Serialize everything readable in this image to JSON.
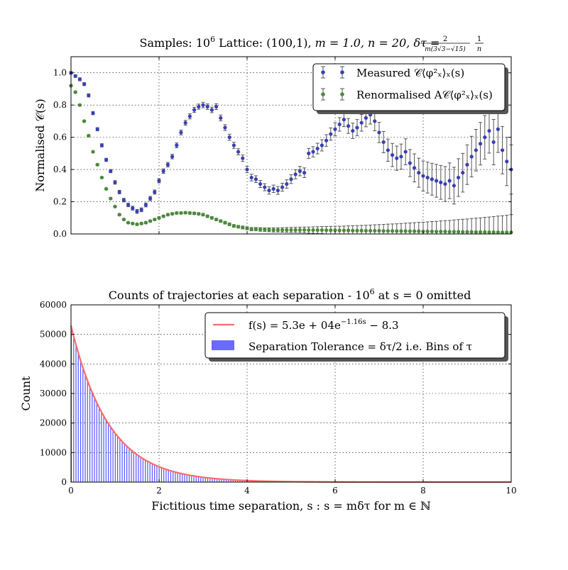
{
  "chart_data": [
    {
      "type": "scatter",
      "title": "Samples: 10^6 Lattice: (100,1), m = 1.0, n = 20, δτ = 2/(m(3√3−√15)) · 1/n",
      "title_parts": {
        "prefix": "Samples: 10",
        "exp": "6",
        "lattice": " Lattice: (100,1), ",
        "m_eq": "m = 1.0, ",
        "n_eq": "n = 20, ",
        "dtau": "δτ = ",
        "frac_num": "2",
        "frac_den": "m(3√3−√15)",
        "frac2_num": "1",
        "frac2_den": "n"
      },
      "xlabel": "",
      "ylabel": "Normalised 𝒞(s)",
      "xlim": [
        0,
        10
      ],
      "ylim": [
        0,
        1.1
      ],
      "xticks": [
        0,
        2,
        4,
        6,
        8,
        10
      ],
      "yticks": [
        0.0,
        0.2,
        0.4,
        0.6,
        0.8,
        1.0
      ],
      "ytick_labels": [
        "0.0",
        "0.2",
        "0.4",
        "0.6",
        "0.8",
        "1.0"
      ],
      "grid": true,
      "legend_position": "top-right",
      "series": [
        {
          "name": "Measured 𝒞⟨φ²ₓ⟩ₓ(s)",
          "color": "#3a3fb4",
          "x": [
            0.0,
            0.1,
            0.2,
            0.3,
            0.4,
            0.5,
            0.6,
            0.7,
            0.8,
            0.9,
            1.0,
            1.1,
            1.2,
            1.3,
            1.4,
            1.5,
            1.6,
            1.7,
            1.8,
            1.9,
            2.0,
            2.1,
            2.2,
            2.3,
            2.4,
            2.5,
            2.6,
            2.7,
            2.8,
            2.9,
            3.0,
            3.1,
            3.2,
            3.3,
            3.4,
            3.5,
            3.6,
            3.7,
            3.8,
            3.9,
            4.0,
            4.1,
            4.2,
            4.3,
            4.4,
            4.5,
            4.6,
            4.7,
            4.8,
            4.9,
            5.0,
            5.1,
            5.2,
            5.3,
            5.4,
            5.5,
            5.6,
            5.7,
            5.8,
            5.9,
            6.0,
            6.1,
            6.2,
            6.3,
            6.4,
            6.5,
            6.6,
            6.7,
            6.8,
            6.9,
            7.0,
            7.1,
            7.2,
            7.3,
            7.4,
            7.5,
            7.6,
            7.7,
            7.8,
            7.9,
            8.0,
            8.1,
            8.2,
            8.3,
            8.4,
            8.5,
            8.6,
            8.7,
            8.8,
            8.9,
            9.0,
            9.1,
            9.2,
            9.3,
            9.4,
            9.5,
            9.6,
            9.7,
            9.8,
            9.9,
            10.0
          ],
          "y": [
            1.0,
            0.98,
            0.96,
            0.93,
            0.86,
            0.75,
            0.65,
            0.55,
            0.46,
            0.39,
            0.32,
            0.26,
            0.21,
            0.18,
            0.16,
            0.14,
            0.15,
            0.18,
            0.22,
            0.26,
            0.33,
            0.39,
            0.43,
            0.48,
            0.55,
            0.63,
            0.69,
            0.73,
            0.77,
            0.79,
            0.8,
            0.79,
            0.77,
            0.79,
            0.72,
            0.66,
            0.6,
            0.55,
            0.51,
            0.47,
            0.4,
            0.35,
            0.34,
            0.31,
            0.29,
            0.27,
            0.28,
            0.27,
            0.29,
            0.31,
            0.34,
            0.37,
            0.39,
            0.38,
            0.5,
            0.51,
            0.53,
            0.55,
            0.58,
            0.62,
            0.65,
            0.68,
            0.71,
            0.67,
            0.64,
            0.66,
            0.69,
            0.72,
            0.74,
            0.7,
            0.63,
            0.57,
            0.52,
            0.49,
            0.47,
            0.48,
            0.51,
            0.44,
            0.41,
            0.38,
            0.36,
            0.35,
            0.34,
            0.33,
            0.32,
            0.31,
            0.33,
            0.3,
            0.35,
            0.38,
            0.43,
            0.48,
            0.52,
            0.56,
            0.6,
            0.64,
            0.57,
            0.65,
            0.52,
            0.45,
            0.4
          ],
          "yerr": [
            0.008,
            0.008,
            0.009,
            0.009,
            0.01,
            0.01,
            0.01,
            0.01,
            0.01,
            0.01,
            0.011,
            0.011,
            0.011,
            0.011,
            0.012,
            0.012,
            0.012,
            0.012,
            0.013,
            0.013,
            0.013,
            0.014,
            0.014,
            0.014,
            0.015,
            0.015,
            0.015,
            0.016,
            0.016,
            0.016,
            0.017,
            0.017,
            0.017,
            0.018,
            0.018,
            0.018,
            0.019,
            0.019,
            0.019,
            0.02,
            0.02,
            0.021,
            0.021,
            0.022,
            0.022,
            0.023,
            0.023,
            0.024,
            0.025,
            0.026,
            0.027,
            0.028,
            0.029,
            0.03,
            0.031,
            0.032,
            0.033,
            0.035,
            0.036,
            0.038,
            0.04,
            0.042,
            0.044,
            0.046,
            0.048,
            0.05,
            0.052,
            0.055,
            0.058,
            0.06,
            0.063,
            0.066,
            0.069,
            0.072,
            0.075,
            0.078,
            0.081,
            0.084,
            0.087,
            0.09,
            0.093,
            0.096,
            0.099,
            0.102,
            0.105,
            0.108,
            0.111,
            0.114,
            0.117,
            0.12,
            0.123,
            0.126,
            0.129,
            0.132,
            0.135,
            0.138,
            0.141,
            0.144,
            0.147,
            0.15,
            0.153
          ]
        },
        {
          "name": "Renormalised A𝒞⟨φ²ₓ⟩ₓ(s)",
          "color": "#4a8a3a",
          "x": [
            0.0,
            0.1,
            0.2,
            0.3,
            0.4,
            0.5,
            0.6,
            0.7,
            0.8,
            0.9,
            1.0,
            1.1,
            1.2,
            1.3,
            1.4,
            1.5,
            1.6,
            1.7,
            1.8,
            1.9,
            2.0,
            2.1,
            2.2,
            2.3,
            2.4,
            2.5,
            2.6,
            2.7,
            2.8,
            2.9,
            3.0,
            3.1,
            3.2,
            3.3,
            3.4,
            3.5,
            3.6,
            3.7,
            3.8,
            3.9,
            4.0,
            4.1,
            4.2,
            4.3,
            4.4,
            4.5,
            4.6,
            4.7,
            4.8,
            4.9,
            5.0,
            5.1,
            5.2,
            5.3,
            5.4,
            5.5,
            5.6,
            5.7,
            5.8,
            5.9,
            6.0,
            6.1,
            6.2,
            6.3,
            6.4,
            6.5,
            6.6,
            6.7,
            6.8,
            6.9,
            7.0,
            7.1,
            7.2,
            7.3,
            7.4,
            7.5,
            7.6,
            7.7,
            7.8,
            7.9,
            8.0,
            8.1,
            8.2,
            8.3,
            8.4,
            8.5,
            8.6,
            8.7,
            8.8,
            8.9,
            9.0,
            9.1,
            9.2,
            9.3,
            9.4,
            9.5,
            9.6,
            9.7,
            9.8,
            9.9,
            10.0
          ],
          "y": [
            0.92,
            0.88,
            0.8,
            0.7,
            0.61,
            0.51,
            0.43,
            0.35,
            0.28,
            0.22,
            0.17,
            0.12,
            0.09,
            0.07,
            0.065,
            0.06,
            0.065,
            0.07,
            0.08,
            0.09,
            0.1,
            0.11,
            0.12,
            0.125,
            0.13,
            0.13,
            0.132,
            0.13,
            0.128,
            0.125,
            0.12,
            0.11,
            0.1,
            0.09,
            0.08,
            0.07,
            0.06,
            0.05,
            0.045,
            0.04,
            0.035,
            0.03,
            0.03,
            0.028,
            0.027,
            0.026,
            0.025,
            0.025,
            0.025,
            0.025,
            0.025,
            0.025,
            0.025,
            0.025,
            0.024,
            0.024,
            0.024,
            0.024,
            0.023,
            0.023,
            0.023,
            0.022,
            0.022,
            0.022,
            0.021,
            0.021,
            0.021,
            0.02,
            0.02,
            0.02,
            0.02,
            0.019,
            0.019,
            0.019,
            0.018,
            0.018,
            0.018,
            0.017,
            0.017,
            0.017,
            0.016,
            0.016,
            0.016,
            0.015,
            0.015,
            0.015,
            0.014,
            0.014,
            0.014,
            0.013,
            0.013,
            0.013,
            0.012,
            0.012,
            0.012,
            0.011,
            0.011,
            0.011,
            0.01,
            0.01,
            0.01
          ],
          "yerr": [
            0.005,
            0.005,
            0.005,
            0.005,
            0.005,
            0.005,
            0.005,
            0.005,
            0.005,
            0.005,
            0.005,
            0.005,
            0.005,
            0.005,
            0.005,
            0.006,
            0.006,
            0.006,
            0.006,
            0.006,
            0.006,
            0.006,
            0.006,
            0.006,
            0.006,
            0.006,
            0.006,
            0.007,
            0.007,
            0.007,
            0.007,
            0.007,
            0.007,
            0.007,
            0.007,
            0.008,
            0.008,
            0.008,
            0.008,
            0.009,
            0.009,
            0.01,
            0.01,
            0.011,
            0.011,
            0.012,
            0.013,
            0.013,
            0.014,
            0.015,
            0.016,
            0.016,
            0.017,
            0.018,
            0.019,
            0.02,
            0.021,
            0.022,
            0.023,
            0.024,
            0.025,
            0.026,
            0.027,
            0.028,
            0.03,
            0.031,
            0.032,
            0.034,
            0.035,
            0.037,
            0.038,
            0.04,
            0.042,
            0.043,
            0.045,
            0.047,
            0.049,
            0.051,
            0.053,
            0.055,
            0.057,
            0.059,
            0.061,
            0.063,
            0.066,
            0.068,
            0.07,
            0.073,
            0.075,
            0.078,
            0.08,
            0.083,
            0.086,
            0.088,
            0.091,
            0.094,
            0.097,
            0.1,
            0.103,
            0.106,
            0.11
          ]
        }
      ]
    },
    {
      "type": "bar",
      "title": "Counts of trajectories at each separation - 10^6 at s = 0 omitted",
      "title_parts": {
        "prefix": "Counts of trajectories at each separation - 10",
        "exp": "6",
        "suffix": " at s = 0 omitted"
      },
      "xlabel": "Fictitious time separation, s : s = mδτ for m ∈ ℕ",
      "ylabel": "Count",
      "xlim": [
        0,
        10
      ],
      "ylim": [
        0,
        60000
      ],
      "xticks": [
        0,
        2,
        4,
        6,
        8,
        10
      ],
      "yticks": [
        0,
        10000,
        20000,
        30000,
        40000,
        50000,
        60000
      ],
      "grid": true,
      "legend_position": "top-right",
      "fit": {
        "name": "f(s) = 5.3e + 04e^(−1.16s) − 8.3",
        "label_parts": {
          "main": "f(s) = 5.3e + 04e",
          "exp": "−1.16s",
          "tail": " − 8.3"
        },
        "A": 53000,
        "k": 1.16,
        "c": -8.3,
        "color": "#ff6b6b"
      },
      "bars": {
        "name": "Separation Tolerance = δτ/2 i.e. Bins of τ",
        "color": "#5555ff",
        "x_start": 0.0,
        "x_end": 10.0,
        "bin_width": 0.0525,
        "A": 53000,
        "k": 1.16
      }
    }
  ]
}
